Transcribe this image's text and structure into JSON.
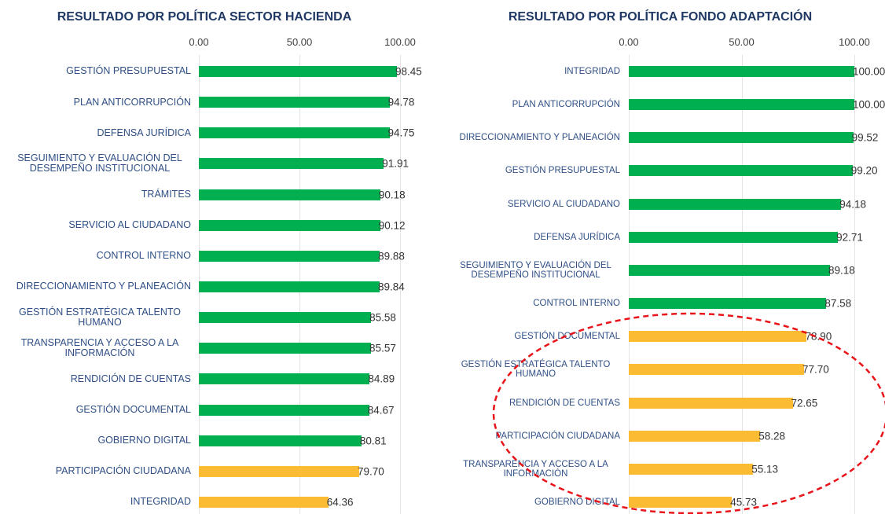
{
  "chart_data": [
    {
      "type": "bar",
      "orientation": "horizontal",
      "title": "RESULTADO POR POLÍTICA SECTOR HACIENDA",
      "categories": [
        "GESTIÓN PRESUPUESTAL",
        "PLAN ANTICORRUPCIÓN",
        "DEFENSA JURÍDICA",
        "SEGUIMIENTO Y EVALUACIÓN DEL DESEMPEÑO INSTITUCIONAL",
        "TRÁMITES",
        "SERVICIO AL CIUDADANO",
        "CONTROL INTERNO",
        "DIRECCIONAMIENTO Y PLANEACIÓN",
        "GESTIÓN ESTRATÉGICA TALENTO HUMANO",
        "TRANSPARENCIA Y ACCESO A LA INFORMACIÓN",
        "RENDICIÓN DE CUENTAS",
        "GESTIÓN DOCUMENTAL",
        "GOBIERNO DIGITAL",
        "PARTICIPACIÓN CIUDADANA",
        "INTEGRIDAD"
      ],
      "values": [
        98.45,
        94.78,
        94.75,
        91.91,
        90.18,
        90.12,
        89.88,
        89.84,
        85.58,
        85.57,
        84.89,
        84.67,
        80.81,
        79.7,
        64.36
      ],
      "value_labels": [
        "98.45",
        "94.78",
        "94.75",
        "91.91",
        "90.18",
        "90.12",
        "89.88",
        "89.84",
        "85.58",
        "85.57",
        "84.89",
        "84.67",
        "80.81",
        "79.70",
        "64.36"
      ],
      "colors": [
        "#00b050",
        "#00b050",
        "#00b050",
        "#00b050",
        "#00b050",
        "#00b050",
        "#00b050",
        "#00b050",
        "#00b050",
        "#00b050",
        "#00b050",
        "#00b050",
        "#00b050",
        "#fbbc34",
        "#fbbc34"
      ],
      "xlim": [
        0,
        100
      ],
      "xticks": [
        {
          "value": 0,
          "label": "0.00"
        },
        {
          "value": 50,
          "label": "50.00"
        },
        {
          "value": 100,
          "label": "100.00"
        }
      ],
      "grid": true
    },
    {
      "type": "bar",
      "orientation": "horizontal",
      "title": "RESULTADO POR POLÍTICA FONDO ADAPTACIÓN",
      "categories": [
        "INTEGRIDAD",
        "PLAN ANTICORRUPCIÓN",
        "DIRECCIONAMIENTO Y PLANEACIÓN",
        "GESTIÓN PRESUPUESTAL",
        "SERVICIO AL CIUDADANO",
        "DEFENSA JURÍDICA",
        "SEGUIMIENTO Y EVALUACIÓN DEL DESEMPEÑO INSTITUCIONAL",
        "CONTROL INTERNO",
        "GESTIÓN DOCUMENTAL",
        "GESTIÓN ESTRATÉGICA TALENTO HUMANO",
        "RENDICIÓN DE CUENTAS",
        "PARTICIPACIÓN CIUDADANA",
        "TRANSPARENCIA Y ACCESO A LA INFORMACIÓN",
        "GOBIERNO DIGITAL"
      ],
      "values": [
        100,
        100,
        99.52,
        99.2,
        94.18,
        92.71,
        89.18,
        87.58,
        78.9,
        77.7,
        72.65,
        58.28,
        55.13,
        45.73
      ],
      "value_labels": [
        "100.00",
        "100.00",
        "99.52",
        "99.20",
        "94.18",
        "92.71",
        "89.18",
        "87.58",
        "78.90",
        "77.70",
        "72.65",
        "58.28",
        "55.13",
        "45.73"
      ],
      "colors": [
        "#00b050",
        "#00b050",
        "#00b050",
        "#00b050",
        "#00b050",
        "#00b050",
        "#00b050",
        "#00b050",
        "#fbbc34",
        "#fbbc34",
        "#fbbc34",
        "#fbbc34",
        "#fbbc34",
        "#fbbc34"
      ],
      "xlim": [
        0,
        100
      ],
      "xticks": [
        {
          "value": 0,
          "label": "0.00"
        },
        {
          "value": 50,
          "label": "50.00"
        },
        {
          "value": 100,
          "label": "100.00"
        }
      ],
      "grid": true
    }
  ]
}
